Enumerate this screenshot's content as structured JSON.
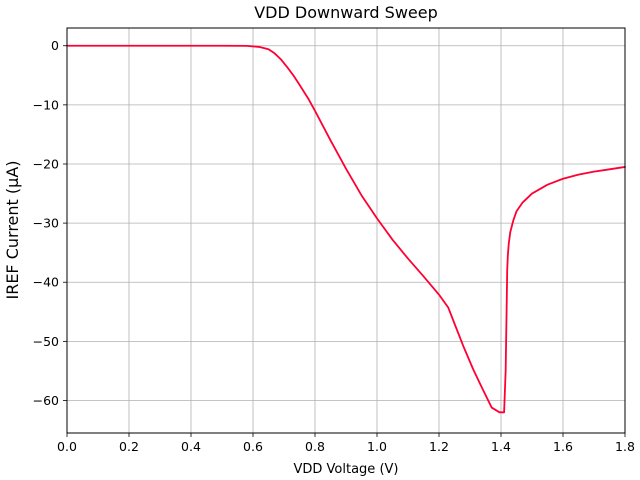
{
  "chart_data": {
    "type": "line",
    "title": "VDD Downward Sweep",
    "xlabel": "VDD Voltage (V)",
    "ylabel": "IREF Current (µA)",
    "xlim": [
      0.0,
      1.8
    ],
    "ylim": [
      -65.5,
      3
    ],
    "grid": true,
    "x_ticks": [
      0.0,
      0.2,
      0.4,
      0.6,
      0.8,
      1.0,
      1.2,
      1.4,
      1.6,
      1.8
    ],
    "x_tick_labels": [
      "0.0",
      "0.2",
      "0.4",
      "0.6",
      "0.8",
      "1.0",
      "1.2",
      "1.4",
      "1.6",
      "1.8"
    ],
    "y_ticks": [
      0,
      -10,
      -20,
      -30,
      -40,
      -50,
      -60
    ],
    "y_tick_labels": [
      "0",
      "−10",
      "−20",
      "−30",
      "−40",
      "−50",
      "−60"
    ],
    "series": [
      {
        "color": "#ff0033",
        "x": [
          0.0,
          0.1,
          0.2,
          0.3,
          0.4,
          0.5,
          0.58,
          0.62,
          0.65,
          0.67,
          0.69,
          0.71,
          0.73,
          0.75,
          0.78,
          0.8,
          0.85,
          0.9,
          0.95,
          1.0,
          1.05,
          1.1,
          1.15,
          1.2,
          1.23,
          1.25,
          1.28,
          1.31,
          1.34,
          1.37,
          1.395,
          1.41,
          1.415,
          1.418,
          1.42,
          1.422,
          1.425,
          1.43,
          1.44,
          1.45,
          1.47,
          1.5,
          1.55,
          1.6,
          1.65,
          1.7,
          1.75,
          1.8
        ],
        "y": [
          0,
          0,
          0,
          0,
          0,
          0,
          -0.02,
          -0.2,
          -0.6,
          -1.3,
          -2.3,
          -3.6,
          -5.0,
          -6.6,
          -9.1,
          -11.0,
          -16.0,
          -20.8,
          -25.3,
          -29.2,
          -32.8,
          -36.0,
          -39.0,
          -42.1,
          -44.3,
          -47.0,
          -51.0,
          -54.7,
          -58.0,
          -61.2,
          -62.0,
          -62.0,
          -55.0,
          -45.0,
          -38.0,
          -35.5,
          -33.5,
          -31.5,
          -29.5,
          -28.0,
          -26.5,
          -25.0,
          -23.5,
          -22.5,
          -21.8,
          -21.3,
          -20.9,
          -20.5
        ]
      }
    ]
  }
}
